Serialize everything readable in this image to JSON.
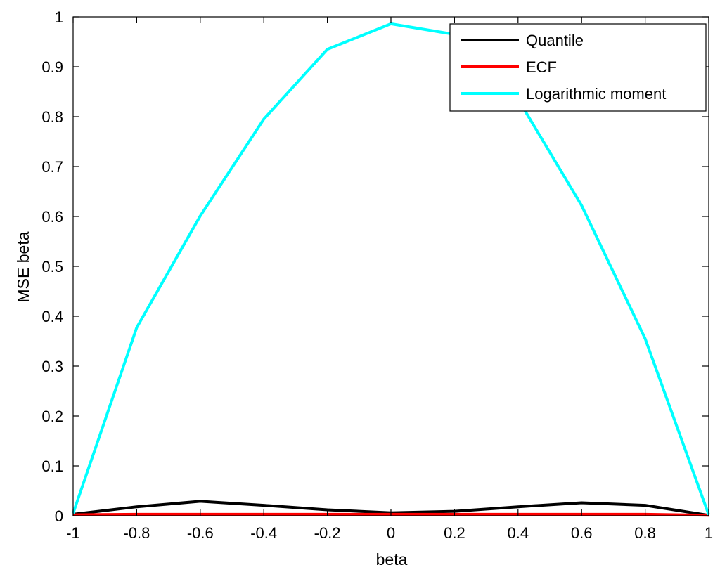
{
  "chart_data": {
    "type": "line",
    "title": "",
    "xlabel": "beta",
    "ylabel": "MSE beta",
    "xlim": [
      -1,
      1
    ],
    "ylim": [
      0,
      1
    ],
    "xticks": [
      -1,
      -0.8,
      -0.6,
      -0.4,
      -0.2,
      0,
      0.2,
      0.4,
      0.6,
      0.8,
      1
    ],
    "xtick_labels": [
      "-1",
      "-0.8",
      "-0.6",
      "-0.4",
      "-0.2",
      "0",
      "0.2",
      "0.4",
      "0.6",
      "0.8",
      "1"
    ],
    "yticks": [
      0,
      0.1,
      0.2,
      0.3,
      0.4,
      0.5,
      0.6,
      0.7,
      0.8,
      0.9,
      1
    ],
    "ytick_labels": [
      "0",
      "0.1",
      "0.2",
      "0.3",
      "0.4",
      "0.5",
      "0.6",
      "0.7",
      "0.8",
      "0.9",
      "1"
    ],
    "grid": false,
    "legend_position": "top-right",
    "x": [
      -1,
      -0.8,
      -0.6,
      -0.4,
      -0.2,
      0,
      0.2,
      0.4,
      0.6,
      0.8,
      1
    ],
    "series": [
      {
        "name": "Quantile",
        "color": "#000000",
        "values": [
          0.003,
          0.018,
          0.029,
          0.021,
          0.012,
          0.006,
          0.009,
          0.018,
          0.026,
          0.021,
          0.001
        ]
      },
      {
        "name": "ECF",
        "color": "#ff0000",
        "values": [
          0.002,
          0.003,
          0.003,
          0.003,
          0.003,
          0.003,
          0.003,
          0.003,
          0.003,
          0.003,
          0.001
        ]
      },
      {
        "name": "Logarithmic moment",
        "color": "#00ffff",
        "values": [
          0.005,
          0.377,
          0.601,
          0.795,
          0.935,
          0.986,
          0.965,
          0.835,
          0.622,
          0.355,
          0.002
        ]
      }
    ]
  }
}
